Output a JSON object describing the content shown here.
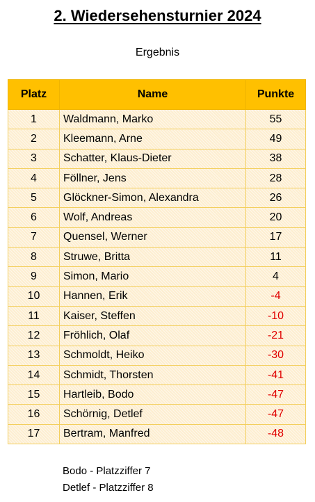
{
  "title": "2. Wiedersehensturnier 2024",
  "subtitle": "Ergebnis",
  "table": {
    "headers": [
      "Platz",
      "Name",
      "Punkte"
    ],
    "rows": [
      {
        "platz": "1",
        "name": "Waldmann, Marko",
        "punkte": "55"
      },
      {
        "platz": "2",
        "name": "Kleemann, Arne",
        "punkte": "49"
      },
      {
        "platz": "3",
        "name": "Schatter, Klaus-Dieter",
        "punkte": "38"
      },
      {
        "platz": "4",
        "name": "Föllner, Jens",
        "punkte": "28"
      },
      {
        "platz": "5",
        "name": "Glöckner-Simon, Alexandra",
        "punkte": "26"
      },
      {
        "platz": "6",
        "name": "Wolf, Andreas",
        "punkte": "20"
      },
      {
        "platz": "7",
        "name": "Quensel, Werner",
        "punkte": "17"
      },
      {
        "platz": "8",
        "name": "Struwe, Britta",
        "punkte": "11"
      },
      {
        "platz": "9",
        "name": "Simon, Mario",
        "punkte": "4"
      },
      {
        "platz": "10",
        "name": "Hannen, Erik",
        "punkte": "-4"
      },
      {
        "platz": "11",
        "name": "Kaiser, Steffen",
        "punkte": "-10"
      },
      {
        "platz": "12",
        "name": "Fröhlich, Olaf",
        "punkte": "-21"
      },
      {
        "platz": "13",
        "name": "Schmoldt, Heiko",
        "punkte": "-30"
      },
      {
        "platz": "14",
        "name": "Schmidt, Thorsten",
        "punkte": "-41"
      },
      {
        "platz": "15",
        "name": "Hartleib, Bodo",
        "punkte": "-47"
      },
      {
        "platz": "16",
        "name": "Schörnig, Detlef",
        "punkte": "-47"
      },
      {
        "platz": "17",
        "name": "Bertram, Manfred",
        "punkte": "-48"
      }
    ]
  },
  "notes": [
    "Bodo - Platzziffer 7",
    "Detlef - Platzziffer 8"
  ],
  "colors": {
    "header_background": "#ffc000",
    "row_background": "#fdeed0",
    "negative_points": "#e00000"
  }
}
